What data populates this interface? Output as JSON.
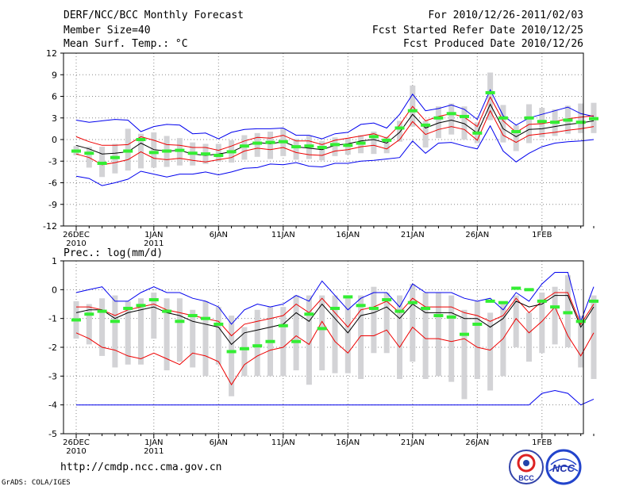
{
  "header": {
    "title": "DERF/NCC/BCC Monthly Forecast",
    "member_size": "Member Size=40",
    "variable": "Mean Surf. Temp.: °C",
    "period": "For 2010/12/26-2011/02/03",
    "started": "Fcst Started Refer Date 2010/12/25",
    "produced": "Fcst Produced Date 2010/12/26"
  },
  "footer": {
    "url": "http://cmdp.ncc.cma.gov.cn",
    "credit": "GrADS: COLA/IGES",
    "logo_bcc": "BCC",
    "logo_ncc": "NCC"
  },
  "colors": {
    "envelope": "#0000ee",
    "spread": "#ee0000",
    "mean": "#000000",
    "median": "#33ee33",
    "box": "#d3d3d6",
    "grid": "#888888"
  },
  "chart_data": [
    {
      "type": "line",
      "title": "Mean Surf. Temp.: °C",
      "x_tick_labels": [
        [
          "26DEC",
          "2010"
        ],
        [
          "1JAN",
          "2011"
        ],
        [
          "6JAN",
          ""
        ],
        [
          "11JAN",
          ""
        ],
        [
          "16JAN",
          ""
        ],
        [
          "21JAN",
          ""
        ],
        [
          "26JAN",
          ""
        ],
        [
          "1FEB",
          ""
        ]
      ],
      "x_tick_days": [
        0,
        6,
        11,
        16,
        21,
        26,
        31,
        36
      ],
      "ylim": [
        -12,
        12
      ],
      "yticks": [
        -12,
        -9,
        -6,
        -3,
        0,
        3,
        6,
        9,
        12
      ],
      "series": [
        {
          "name": "max",
          "values": [
            2.7,
            2.4,
            2.6,
            2.8,
            2.7,
            1.1,
            1.8,
            2.1,
            2.0,
            0.8,
            0.9,
            0.1,
            1.0,
            1.4,
            1.5,
            1.5,
            1.6,
            0.6,
            0.6,
            0.1,
            0.8,
            1.0,
            2.1,
            2.3,
            1.6,
            3.5,
            6.3,
            4.0,
            4.3,
            4.8,
            4.2,
            2.8,
            6.9,
            3.3,
            2.0,
            3.0,
            3.5,
            4.0,
            4.5,
            3.6,
            3.2
          ]
        },
        {
          "name": "upper",
          "values": [
            0.4,
            -0.3,
            -0.8,
            -0.8,
            -0.7,
            0.4,
            -0.1,
            -0.7,
            -0.8,
            -1.1,
            -1.1,
            -1.5,
            -0.9,
            -0.2,
            0.3,
            0.2,
            0.6,
            -0.2,
            -0.2,
            -0.7,
            -0.1,
            0.2,
            0.5,
            0.8,
            0.2,
            2.0,
            4.6,
            2.6,
            3.2,
            3.6,
            3.1,
            1.8,
            5.9,
            2.6,
            1.0,
            2.1,
            2.2,
            2.5,
            2.9,
            3.1,
            3.3
          ]
        },
        {
          "name": "mean",
          "values": [
            -0.8,
            -1.3,
            -2.0,
            -1.9,
            -1.7,
            -0.5,
            -1.4,
            -1.6,
            -1.5,
            -2.0,
            -2.2,
            -2.0,
            -1.7,
            -0.9,
            -0.4,
            -0.6,
            -0.3,
            -1.0,
            -1.2,
            -1.4,
            -0.8,
            -0.6,
            -0.2,
            0.0,
            -0.5,
            1.0,
            3.5,
            1.6,
            2.3,
            2.7,
            2.2,
            0.9,
            4.9,
            1.5,
            0.4,
            1.4,
            1.5,
            1.8,
            2.1,
            2.3,
            2.6
          ]
        },
        {
          "name": "lower",
          "values": [
            -2.0,
            -2.5,
            -3.5,
            -3.2,
            -2.8,
            -1.7,
            -2.6,
            -2.8,
            -2.6,
            -2.9,
            -3.1,
            -2.8,
            -2.5,
            -1.6,
            -1.2,
            -1.4,
            -1.1,
            -1.8,
            -2.1,
            -2.2,
            -1.6,
            -1.4,
            -1.0,
            -0.8,
            -1.3,
            0.0,
            2.5,
            0.7,
            1.4,
            1.8,
            1.4,
            -0.1,
            4.0,
            0.6,
            -0.4,
            0.6,
            0.8,
            1.0,
            1.3,
            1.5,
            1.8
          ]
        },
        {
          "name": "min",
          "values": [
            -5.1,
            -5.4,
            -6.4,
            -6.0,
            -5.5,
            -4.4,
            -4.8,
            -5.2,
            -4.8,
            -4.8,
            -4.5,
            -4.9,
            -4.5,
            -4.0,
            -3.9,
            -3.4,
            -3.5,
            -3.2,
            -3.7,
            -3.8,
            -3.3,
            -3.3,
            -3.0,
            -2.9,
            -2.7,
            -2.5,
            -0.2,
            -1.9,
            -0.5,
            -0.4,
            -0.9,
            -1.3,
            1.9,
            -1.6,
            -3.1,
            -1.9,
            -1.0,
            -0.5,
            -0.3,
            -0.2,
            0.0
          ]
        }
      ],
      "box_top": [
        -0.9,
        -1.0,
        -1.0,
        -0.6,
        1.5,
        0.8,
        1.0,
        0.5,
        0.2,
        -0.4,
        -0.6,
        -0.6,
        -0.1,
        0.6,
        0.9,
        1.1,
        1.5,
        0.1,
        0.5,
        -0.2,
        0.3,
        0.2,
        0.6,
        1.1,
        0.4,
        2.6,
        7.5,
        2.6,
        4.6,
        5.0,
        4.6,
        2.4,
        9.3,
        4.8,
        2.0,
        4.9,
        4.4,
        4.2,
        4.7,
        5.0,
        5.1
      ],
      "box_bottom": [
        -2.2,
        -3.9,
        -5.2,
        -4.7,
        -4.3,
        -4.0,
        -3.9,
        -3.8,
        -3.6,
        -3.6,
        -3.4,
        -3.1,
        -3.2,
        -2.8,
        -2.4,
        -2.7,
        -2.3,
        -2.8,
        -2.7,
        -2.9,
        -2.3,
        -2.1,
        -1.9,
        -2.0,
        -1.9,
        -0.3,
        1.8,
        -1.1,
        0.2,
        0.7,
        0.0,
        -0.5,
        2.7,
        -0.4,
        -1.6,
        -0.5,
        0.3,
        0.5,
        0.8,
        0.9,
        0.9
      ],
      "median": [
        -1.6,
        -1.9,
        -3.3,
        -2.5,
        -1.6,
        0.0,
        -1.8,
        -1.6,
        -1.5,
        -1.9,
        -2.0,
        -2.2,
        -1.7,
        -0.9,
        -0.5,
        -0.4,
        -0.3,
        -1.0,
        -0.9,
        -1.1,
        -0.7,
        -0.8,
        -0.5,
        0.4,
        -0.1,
        1.6,
        4.0,
        2.0,
        3.0,
        3.6,
        3.2,
        0.9,
        6.5,
        3.0,
        1.1,
        3.0,
        2.5,
        2.4,
        2.7,
        2.4,
        2.9
      ]
    },
    {
      "type": "line",
      "title": "Prec.: log(mm/d)",
      "x_tick_labels": [
        [
          "26DEC",
          "2010"
        ],
        [
          "1JAN",
          "2011"
        ],
        [
          "6JAN",
          ""
        ],
        [
          "11JAN",
          ""
        ],
        [
          "16JAN",
          ""
        ],
        [
          "21JAN",
          ""
        ],
        [
          "26JAN",
          ""
        ],
        [
          "1FEB",
          ""
        ]
      ],
      "x_tick_days": [
        0,
        6,
        11,
        16,
        21,
        26,
        31,
        36
      ],
      "ylim": [
        -5,
        1
      ],
      "yticks": [
        -5,
        -4,
        -3,
        -2,
        -1,
        0,
        1
      ],
      "series": [
        {
          "name": "max",
          "values": [
            -0.1,
            0.0,
            0.1,
            -0.4,
            -0.4,
            -0.1,
            0.1,
            -0.1,
            -0.1,
            -0.3,
            -0.4,
            -0.6,
            -1.2,
            -0.7,
            -0.5,
            -0.6,
            -0.5,
            -0.2,
            -0.4,
            0.3,
            -0.2,
            -0.7,
            -0.3,
            -0.1,
            -0.1,
            -0.6,
            0.2,
            -0.1,
            -0.1,
            -0.1,
            -0.3,
            -0.4,
            -0.3,
            -0.7,
            -0.1,
            -0.4,
            0.2,
            0.6,
            0.6,
            -1.1,
            0.1
          ]
        },
        {
          "name": "upper",
          "values": [
            -0.6,
            -0.6,
            -0.7,
            -0.9,
            -0.7,
            -0.6,
            -0.5,
            -0.7,
            -0.8,
            -0.9,
            -1.0,
            -1.1,
            -1.6,
            -1.2,
            -1.1,
            -1.0,
            -0.9,
            -0.5,
            -0.8,
            -0.3,
            -0.8,
            -1.3,
            -0.7,
            -0.6,
            -0.4,
            -0.8,
            -0.3,
            -0.6,
            -0.6,
            -0.6,
            -0.8,
            -0.9,
            -1.1,
            -0.9,
            -0.3,
            -0.8,
            -0.4,
            -0.1,
            -0.1,
            -1.2,
            -0.5
          ]
        },
        {
          "name": "mean",
          "values": [
            -0.8,
            -0.7,
            -0.7,
            -1.0,
            -0.8,
            -0.7,
            -0.6,
            -0.8,
            -0.9,
            -1.1,
            -1.2,
            -1.3,
            -1.9,
            -1.5,
            -1.4,
            -1.3,
            -1.2,
            -0.8,
            -1.1,
            -0.5,
            -1.0,
            -1.5,
            -0.9,
            -0.8,
            -0.6,
            -1.0,
            -0.5,
            -0.8,
            -0.8,
            -0.8,
            -1.0,
            -1.0,
            -1.3,
            -1.0,
            -0.4,
            -0.6,
            -0.5,
            -0.2,
            -0.2,
            -1.3,
            -0.6
          ]
        },
        {
          "name": "lower",
          "values": [
            -1.5,
            -1.7,
            -2.0,
            -2.1,
            -2.3,
            -2.4,
            -2.2,
            -2.4,
            -2.6,
            -2.2,
            -2.3,
            -2.5,
            -3.3,
            -2.6,
            -2.3,
            -2.1,
            -2.0,
            -1.6,
            -1.9,
            -1.1,
            -1.8,
            -2.2,
            -1.6,
            -1.6,
            -1.4,
            -2.0,
            -1.3,
            -1.7,
            -1.7,
            -1.8,
            -1.7,
            -2.0,
            -2.1,
            -1.7,
            -1.0,
            -1.5,
            -1.1,
            -0.6,
            -1.6,
            -2.3,
            -1.5
          ]
        },
        {
          "name": "min",
          "values": [
            -4.0,
            -4.0,
            -4.0,
            -4.0,
            -4.0,
            -4.0,
            -4.0,
            -4.0,
            -4.0,
            -4.0,
            -4.0,
            -4.0,
            -4.0,
            -4.0,
            -4.0,
            -4.0,
            -4.0,
            -4.0,
            -4.0,
            -4.0,
            -4.0,
            -4.0,
            -4.0,
            -4.0,
            -4.0,
            -4.0,
            -4.0,
            -4.0,
            -4.0,
            -4.0,
            -4.0,
            -4.0,
            -4.0,
            -4.0,
            -4.0,
            -4.0,
            -3.6,
            -3.5,
            -3.6,
            -4.0,
            -3.8
          ]
        }
      ],
      "box_top": [
        -0.4,
        -0.5,
        -0.3,
        -0.2,
        -0.4,
        -0.3,
        -0.1,
        -0.3,
        -0.3,
        -0.7,
        -0.4,
        -0.6,
        -0.9,
        -1.3,
        -0.7,
        -0.6,
        -0.6,
        -0.2,
        -0.2,
        -0.2,
        -0.2,
        -0.3,
        -0.2,
        0.1,
        -0.1,
        -0.2,
        0.2,
        -0.1,
        -0.1,
        -0.2,
        -0.7,
        -0.4,
        -0.8,
        -0.5,
        -0.2,
        -0.8,
        -0.1,
        0.1,
        0.5,
        -0.9,
        -0.2
      ],
      "box_bottom": [
        -1.7,
        -1.9,
        -2.3,
        -2.7,
        -2.6,
        -2.6,
        -1.7,
        -2.8,
        -2.5,
        -2.7,
        -3.0,
        -2.6,
        -3.7,
        -3.0,
        -3.0,
        -3.0,
        -3.0,
        -2.8,
        -3.3,
        -2.8,
        -2.9,
        -2.9,
        -3.1,
        -2.2,
        -2.2,
        -3.1,
        -2.5,
        -3.1,
        -3.0,
        -3.2,
        -3.8,
        -3.1,
        -3.5,
        -3.0,
        -2.0,
        -2.5,
        -2.2,
        -1.9,
        -2.0,
        -2.7,
        -3.1
      ],
      "median": [
        -1.05,
        -0.85,
        -0.75,
        -1.1,
        -0.65,
        -0.55,
        -0.35,
        -0.75,
        -1.1,
        -0.9,
        -1.0,
        -1.2,
        -2.15,
        -2.05,
        -1.95,
        -1.8,
        -1.25,
        -1.8,
        -0.85,
        -1.35,
        -0.65,
        -0.25,
        -0.55,
        -0.65,
        -0.35,
        -0.75,
        -0.45,
        -0.65,
        -0.9,
        -0.95,
        -1.55,
        -1.2,
        -0.4,
        -0.45,
        0.05,
        0.0,
        -0.4,
        -0.6,
        -0.8,
        -1.1,
        -0.4
      ]
    }
  ]
}
